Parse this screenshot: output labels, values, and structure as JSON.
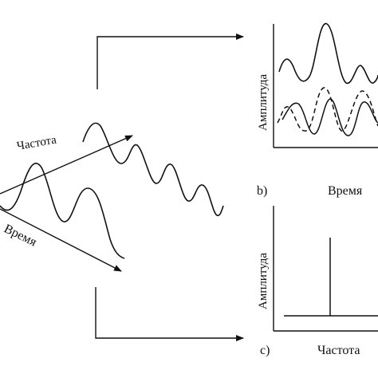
{
  "labels": {
    "frequency_axis": "Частота",
    "time_axis": "Время",
    "panel_b_letter": "b)",
    "panel_b_xlabel": "Время",
    "panel_b_ylabel": "Амплитуда",
    "panel_c_letter": "c)",
    "panel_c_xlabel": "Частота",
    "panel_c_ylabel": "Амплитуда"
  },
  "colors": {
    "ink": "#111111",
    "background": "#ffffff"
  }
}
